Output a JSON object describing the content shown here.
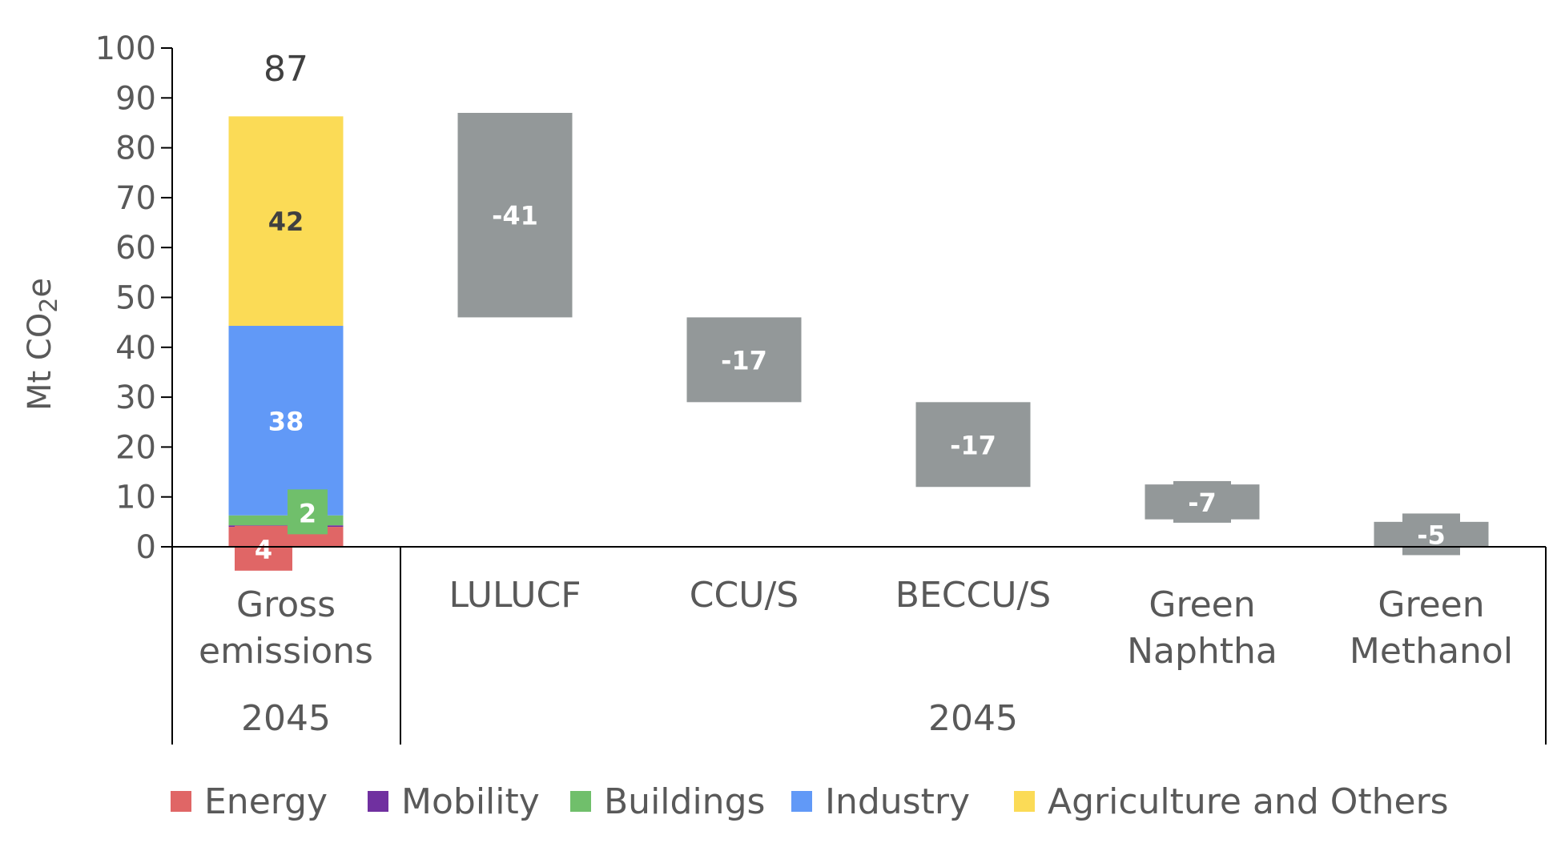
{
  "chart_data": {
    "type": "bar",
    "subtype": "waterfall",
    "ylabel": "Mt CO",
    "ylabel_sub": "2",
    "ylabel_suffix": "e",
    "ylim": [
      0,
      100
    ],
    "yticks": [
      "0",
      "10",
      "20",
      "30",
      "40",
      "50",
      "60",
      "70",
      "80",
      "90",
      "100"
    ],
    "grid": false,
    "legend_position": "bottom",
    "gross": {
      "category": [
        "Gross",
        "emissions"
      ],
      "group": "2045",
      "total": 87,
      "total_label": "87",
      "segments": [
        {
          "name": "Energy",
          "value": 4,
          "label": "4",
          "color": "#e06666"
        },
        {
          "name": "Mobility",
          "value": 0.3,
          "label": "",
          "color": "#7030a0"
        },
        {
          "name": "Buildings",
          "value": 2,
          "label": "2",
          "color": "#70bf6b"
        },
        {
          "name": "Industry",
          "value": 38,
          "label": "38",
          "color": "#6199f7"
        },
        {
          "name": "Agriculture and Others",
          "value": 42,
          "label": "42",
          "color": "#fbdb56"
        }
      ]
    },
    "removals": [
      {
        "category": [
          "LULUCF"
        ],
        "value": -41,
        "label": "-41",
        "start": 87
      },
      {
        "category": [
          "CCU/S"
        ],
        "value": -17,
        "label": "-17",
        "start": 46
      },
      {
        "category": [
          "BECCU/S"
        ],
        "value": -17,
        "label": "-17",
        "start": 29
      },
      {
        "category": [
          "Green",
          "Naphtha"
        ],
        "value": -7,
        "label": "-7",
        "start": 12.5
      },
      {
        "category": [
          "Green",
          "Methanol"
        ],
        "value": -5,
        "label": "-5",
        "start": 5
      }
    ],
    "removal_color": "#939899",
    "removals_group": "2045",
    "legend": [
      {
        "name": "Energy",
        "color": "#e06666"
      },
      {
        "name": "Mobility",
        "color": "#7030a0"
      },
      {
        "name": "Buildings",
        "color": "#70bf6b"
      },
      {
        "name": "Industry",
        "color": "#6199f7"
      },
      {
        "name": "Agriculture and Others",
        "color": "#fbdb56"
      }
    ]
  }
}
